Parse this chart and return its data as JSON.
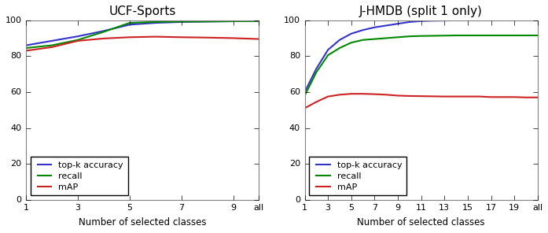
{
  "ucf_title": "UCF-Sports",
  "jhmdb_title": "J-HMDB (split 1 only)",
  "xlabel": "Number of selected classes",
  "legend_labels": [
    "top-k accuracy",
    "recall",
    "mAP"
  ],
  "colors": [
    "#3333cc",
    "#008800",
    "#cc2222"
  ],
  "ucf_xtick_labels": [
    "1",
    "3",
    "5",
    "7",
    "9",
    "all"
  ],
  "ucf_xtick_positions": [
    1,
    3,
    5,
    7,
    9,
    10
  ],
  "ucf_topk": [
    86.0,
    88.5,
    91.0,
    94.0,
    97.5,
    98.5,
    99.0,
    99.2,
    99.4,
    99.5
  ],
  "ucf_recall": [
    84.5,
    86.0,
    89.0,
    93.5,
    98.5,
    99.0,
    99.2,
    99.3,
    99.4,
    99.5
  ],
  "ucf_map": [
    83.0,
    85.0,
    88.5,
    89.8,
    90.5,
    90.8,
    90.5,
    90.3,
    90.0,
    89.5
  ],
  "jhmdb_xtick_labels": [
    "1",
    "3",
    "5",
    "7",
    "9",
    "11",
    "13",
    "15",
    "17",
    "19",
    "all"
  ],
  "jhmdb_xtick_positions": [
    1,
    3,
    5,
    7,
    9,
    11,
    13,
    15,
    17,
    19,
    21
  ],
  "jhmdb_topk": [
    60.0,
    73.0,
    83.5,
    89.0,
    92.5,
    94.5,
    96.0,
    97.0,
    98.0,
    99.0,
    99.5,
    99.7,
    99.8,
    99.9,
    100.0,
    100.0,
    100.0,
    100.0,
    100.0,
    100.0,
    100.0
  ],
  "jhmdb_recall": [
    58.0,
    71.0,
    80.5,
    84.5,
    87.5,
    89.0,
    89.5,
    90.0,
    90.5,
    91.0,
    91.2,
    91.3,
    91.4,
    91.5,
    91.5,
    91.5,
    91.5,
    91.5,
    91.5,
    91.5,
    91.5
  ],
  "jhmdb_map": [
    51.0,
    54.5,
    57.5,
    58.5,
    59.0,
    59.0,
    58.8,
    58.5,
    58.0,
    57.8,
    57.7,
    57.6,
    57.5,
    57.5,
    57.5,
    57.5,
    57.2,
    57.2,
    57.2,
    57.0,
    57.0
  ],
  "ylim": [
    0,
    100
  ],
  "yticks": [
    0,
    20,
    40,
    60,
    80,
    100
  ],
  "linewidth": 1.5,
  "bg_color": "#ffffff",
  "legend_fontsize": 8,
  "title_fontsize": 11,
  "tick_fontsize": 8,
  "label_fontsize": 8.5
}
